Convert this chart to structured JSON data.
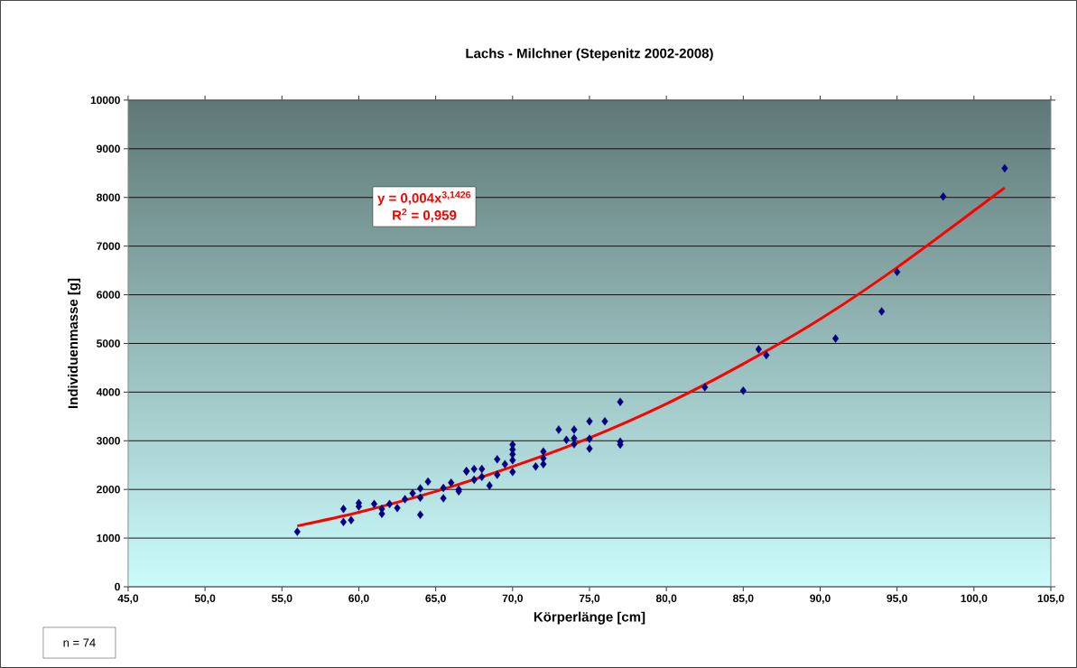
{
  "chart_data": {
    "type": "scatter",
    "title": "Lachs  - Milchner (Stepenitz 2002-2008)",
    "xlabel": "Körperlänge [cm]",
    "ylabel": "Individuenmasse [g]",
    "xlim": [
      45,
      105
    ],
    "ylim": [
      0,
      10000
    ],
    "xticks": [
      {
        "value": 45,
        "label": "45,0"
      },
      {
        "value": 50,
        "label": "50,0"
      },
      {
        "value": 55,
        "label": "55,0"
      },
      {
        "value": 60,
        "label": "60,0"
      },
      {
        "value": 65,
        "label": "65,0"
      },
      {
        "value": 70,
        "label": "70,0"
      },
      {
        "value": 75,
        "label": "75,0"
      },
      {
        "value": 80,
        "label": "80,0"
      },
      {
        "value": 85,
        "label": "85,0"
      },
      {
        "value": 90,
        "label": "90,0"
      },
      {
        "value": 95,
        "label": "95,0"
      },
      {
        "value": 100,
        "label": "100,0"
      },
      {
        "value": 105,
        "label": "105,0"
      }
    ],
    "yticks": [
      0,
      1000,
      2000,
      3000,
      4000,
      5000,
      6000,
      7000,
      8000,
      9000,
      10000
    ],
    "grid": "y",
    "annotations": [
      "y = 0,004x$^{3,1426}$",
      "R$^{2}$ = 0,959",
      "n = 74"
    ],
    "series": [
      {
        "marker": "diamond",
        "color": "#000080",
        "x": [
          56,
          59,
          59,
          59.5,
          60,
          60,
          61,
          61.5,
          61.5,
          62,
          62.5,
          63,
          63.5,
          64,
          64,
          64,
          64.5,
          65.5,
          65.5,
          66,
          66.5,
          66.5,
          67,
          67,
          67.5,
          67.5,
          68,
          68,
          68.5,
          69,
          69,
          69.5,
          70,
          70,
          70,
          70,
          70,
          71.5,
          72,
          72,
          72,
          73,
          73.5,
          74,
          74,
          74,
          75,
          75,
          75,
          76,
          77,
          77,
          77,
          82.5,
          85,
          86,
          86.5,
          91,
          94,
          95,
          98,
          102
        ],
        "values": [
          1130,
          1330,
          1600,
          1370,
          1720,
          1650,
          1700,
          1500,
          1600,
          1700,
          1620,
          1800,
          1920,
          2020,
          1830,
          1480,
          2160,
          2030,
          1820,
          2140,
          1960,
          2000,
          2370,
          2380,
          2420,
          2200,
          2420,
          2260,
          2080,
          2620,
          2300,
          2520,
          2920,
          2820,
          2720,
          2600,
          2360,
          2470,
          2780,
          2640,
          2520,
          3230,
          3020,
          3230,
          3050,
          2930,
          3400,
          3040,
          2840,
          3400,
          3800,
          2980,
          2920,
          4100,
          4030,
          4880,
          4760,
          5100,
          5660,
          6470,
          8020,
          8600
        ]
      },
      {
        "type": "line",
        "marker": "none",
        "line_style": "solid",
        "color": "#ff0000",
        "x": [
          56,
          60,
          65,
          70,
          75,
          80,
          85,
          90,
          95,
          102
        ],
        "values": [
          1250,
          1530,
          1960,
          2470,
          3060,
          3760,
          4580,
          5500,
          6560,
          8200
        ]
      }
    ]
  }
}
